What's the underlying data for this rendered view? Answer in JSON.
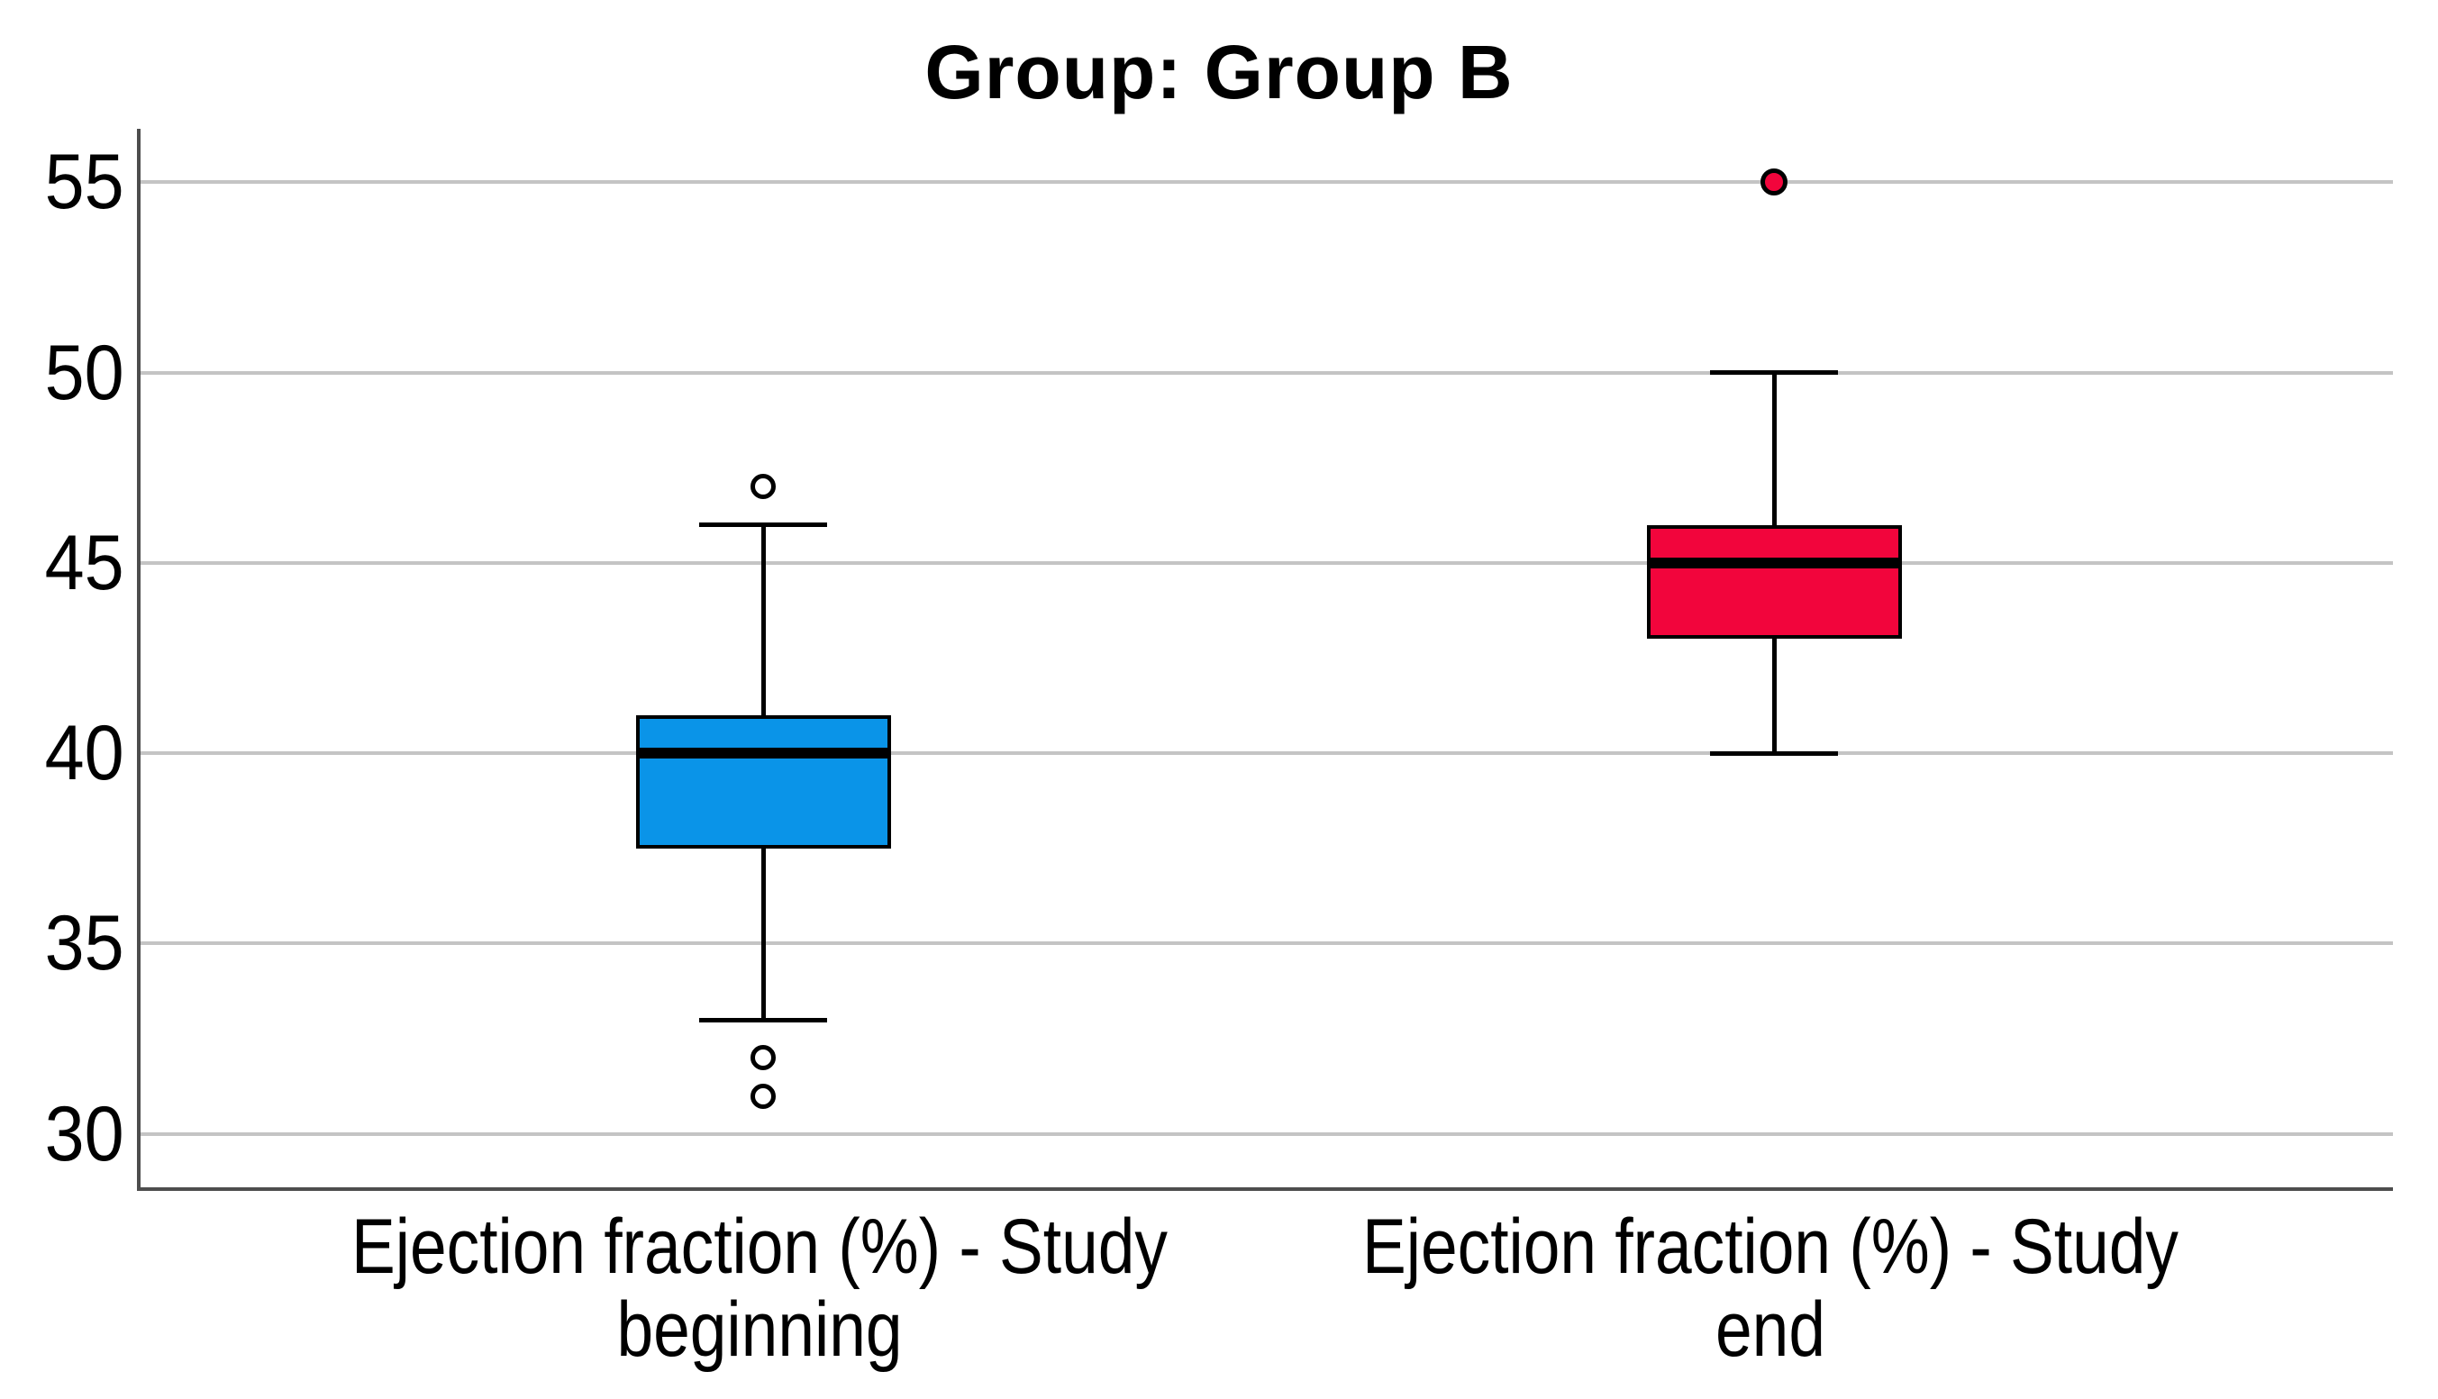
{
  "chart_data": {
    "type": "boxplot",
    "title": "Group: Group B",
    "grid": true,
    "grid_color": "#c4c4c4",
    "axis_line_color": "#4d4d4d",
    "box_border_color": "#000000",
    "y_axis": {
      "ticks": [
        30,
        35,
        40,
        45,
        50,
        55
      ],
      "ylim": [
        28.6,
        56.4
      ]
    },
    "categories": [
      {
        "name": "study-beginning",
        "label_lines": [
          "Ejection fraction (%) - Study",
          "beginning"
        ],
        "center_frac": 0.2764,
        "color": "#0a94e8",
        "box": {
          "whisker_low": 33,
          "q1": 37.5,
          "median": 40,
          "q3": 41,
          "whisker_high": 46
        },
        "outliers": [
          {
            "value": 47,
            "style": "open"
          },
          {
            "value": 32,
            "style": "open"
          },
          {
            "value": 31,
            "style": "open"
          }
        ]
      },
      {
        "name": "study-end",
        "label_lines": [
          "Ejection fraction (%) - Study",
          "end"
        ],
        "center_frac": 0.7252,
        "color": "#f2053c",
        "box": {
          "whisker_low": 40,
          "q1": 43,
          "median": 45,
          "q3": 46,
          "whisker_high": 50
        },
        "outliers": [
          {
            "value": 55,
            "style": "filled"
          }
        ]
      }
    ]
  }
}
